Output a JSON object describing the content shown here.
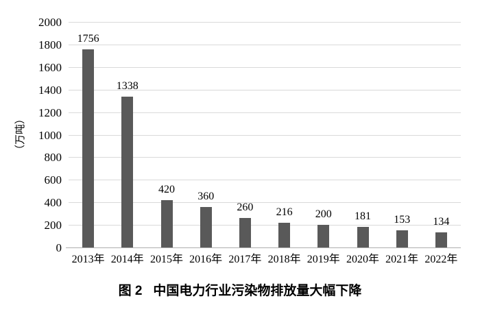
{
  "figure": {
    "caption_label": "图 2",
    "caption_title": "中国电力行业污染物排放量大幅下降"
  },
  "chart_data": {
    "type": "bar",
    "title": "图 2  中国电力行业污染物排放量大幅下降",
    "categories": [
      "2013年",
      "2014年",
      "2015年",
      "2016年",
      "2017年",
      "2018年",
      "2019年",
      "2020年",
      "2021年",
      "2022年"
    ],
    "values": [
      1756,
      1338,
      420,
      360,
      260,
      216,
      200,
      181,
      153,
      134
    ],
    "xlabel": "",
    "ylabel": "（万吨）",
    "ylim": [
      0,
      2000
    ],
    "ytick_interval": 200,
    "grid": true,
    "legend": "none",
    "data_labels": true,
    "bar_color": "#595959",
    "gridline_color": "#d9d9d9",
    "axis_line_color": "#aeaeae",
    "text_color": "#000000"
  }
}
